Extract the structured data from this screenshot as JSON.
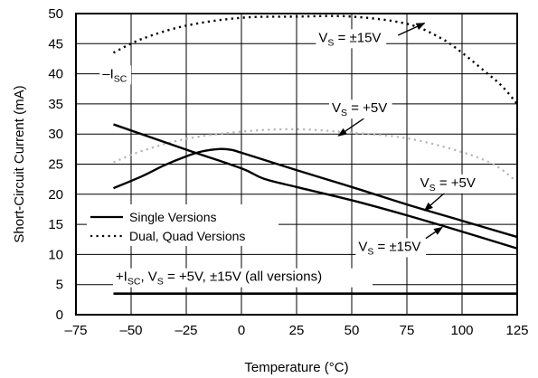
{
  "chart_data": {
    "type": "line",
    "xlabel": "Temperature (°C)",
    "ylabel": "Short-Circuit Current (mA)",
    "xlim": [
      -75,
      125
    ],
    "ylim": [
      0,
      50
    ],
    "xticks": [
      -75,
      -50,
      -25,
      0,
      25,
      50,
      75,
      100,
      125
    ],
    "yticks": [
      0,
      5,
      10,
      15,
      20,
      25,
      30,
      35,
      40,
      45,
      50
    ],
    "grid": true,
    "legend": {
      "placement": "lower-left",
      "entries": [
        {
          "label": "Single Versions",
          "style": "solid"
        },
        {
          "label": "Dual, Quad Versions",
          "style": "dotted"
        }
      ]
    },
    "series": [
      {
        "style": "dotted",
        "color": "#000000",
        "width": 2.4,
        "points": [
          [
            -58,
            43.5
          ],
          [
            -45,
            45.8
          ],
          [
            -25,
            48.0
          ],
          [
            0,
            49.3
          ],
          [
            25,
            49.5
          ],
          [
            50,
            49.5
          ],
          [
            75,
            48.3
          ],
          [
            90,
            46.0
          ],
          [
            100,
            43.5
          ],
          [
            110,
            40.5
          ],
          [
            118,
            38.0
          ],
          [
            125,
            35.0
          ]
        ]
      },
      {
        "style": "dotted",
        "color": "#b5b5b5",
        "width": 2.2,
        "points": [
          [
            -58,
            25.3
          ],
          [
            -45,
            27.2
          ],
          [
            -25,
            29.2
          ],
          [
            0,
            30.4
          ],
          [
            25,
            30.8
          ],
          [
            50,
            30.2
          ],
          [
            75,
            29.3
          ],
          [
            100,
            27.0
          ],
          [
            115,
            24.8
          ],
          [
            125,
            22.0
          ]
        ]
      },
      {
        "style": "solid",
        "color": "#000000",
        "width": 2.4,
        "points": [
          [
            -58,
            21.0
          ],
          [
            -45,
            23.0
          ],
          [
            -35,
            24.8
          ],
          [
            -25,
            26.3
          ],
          [
            -18,
            27.1
          ],
          [
            -10,
            27.5
          ],
          [
            -5,
            27.4
          ],
          [
            0,
            26.9
          ],
          [
            25,
            24.0
          ],
          [
            50,
            21.2
          ],
          [
            75,
            18.3
          ],
          [
            100,
            15.6
          ],
          [
            125,
            12.9
          ]
        ]
      },
      {
        "style": "solid",
        "color": "#000000",
        "width": 2.4,
        "points": [
          [
            -58,
            31.6
          ],
          [
            -25,
            27.4
          ],
          [
            0,
            24.3
          ],
          [
            10,
            22.6
          ],
          [
            25,
            21.2
          ],
          [
            50,
            19.0
          ],
          [
            75,
            16.5
          ],
          [
            100,
            13.8
          ],
          [
            125,
            11.0
          ]
        ]
      },
      {
        "style": "solid",
        "color": "#000000",
        "width": 2.6,
        "points": [
          [
            -58,
            3.5
          ],
          [
            125,
            3.5
          ]
        ]
      }
    ],
    "annotations": [
      {
        "id": "isc-neg",
        "parts": [
          {
            "t": "–I"
          },
          {
            "t": "SC",
            "sub": true
          }
        ],
        "x": -63,
        "y": 39.3
      },
      {
        "id": "vs15-top",
        "parts": [
          {
            "t": "V"
          },
          {
            "t": "S",
            "sub": true
          },
          {
            "t": " = ±15V"
          }
        ],
        "x": 35,
        "y": 45.3,
        "arrow_from": [
          71,
          46.4
        ],
        "arrow_to": [
          83,
          48.4
        ]
      },
      {
        "id": "vs5-mid",
        "parts": [
          {
            "t": "V"
          },
          {
            "t": "S",
            "sub": true
          },
          {
            "t": " = +5V"
          }
        ],
        "x": 41,
        "y": 33.6,
        "arrow_from": [
          56,
          32.7
        ],
        "arrow_to": [
          44,
          29.7
        ]
      },
      {
        "id": "vs5-right",
        "parts": [
          {
            "t": "V"
          },
          {
            "t": "S",
            "sub": true
          },
          {
            "t": " = +5V"
          }
        ],
        "x": 81,
        "y": 21.2,
        "arrow_from": [
          92,
          20.2
        ],
        "arrow_to": [
          83,
          17.3
        ]
      },
      {
        "id": "vs15-bottom",
        "parts": [
          {
            "t": "V"
          },
          {
            "t": "S",
            "sub": true
          },
          {
            "t": " = ±15V"
          }
        ],
        "x": 53,
        "y": 10.6,
        "arrow_from": [
          80,
          11.8
        ],
        "arrow_to": [
          91,
          14.5
        ]
      },
      {
        "id": "isc-pos",
        "parts": [
          {
            "t": "+I"
          },
          {
            "t": "SC",
            "sub": true
          },
          {
            "t": ", V"
          },
          {
            "t": "S",
            "sub": true
          },
          {
            "t": " = +5V, ±15V (all versions)"
          }
        ],
        "x": -57,
        "y": 5.6
      }
    ]
  }
}
